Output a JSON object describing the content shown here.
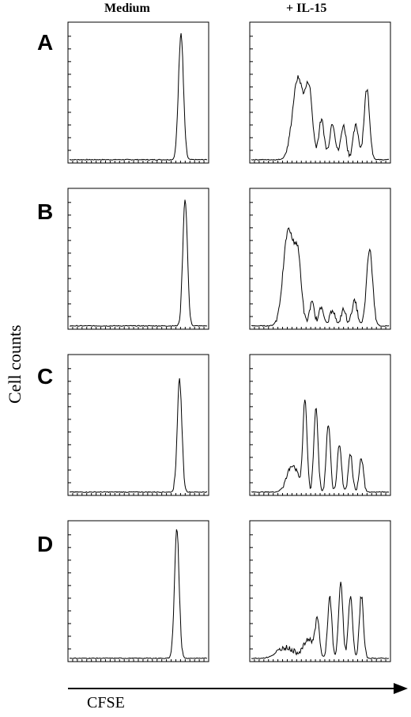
{
  "columns": [
    "Medium",
    "+ IL-15"
  ],
  "rows": [
    "A",
    "B",
    "C",
    "D"
  ],
  "ylabel": "Cell counts",
  "xlabel": "CFSE",
  "chart_data": {
    "type": "line",
    "note_units": "x = fraction of CFSE axis (low to high fluorescence); y = fraction of panel height",
    "xlabel": "CFSE",
    "ylabel": "Cell counts",
    "columns": [
      "Medium",
      "+ IL-15"
    ],
    "rows": [
      "A",
      "B",
      "C",
      "D"
    ],
    "panels": [
      {
        "row": "A",
        "column": "Medium",
        "peaks": [
          {
            "x": 0.81,
            "h": 0.93,
            "w": 0.018
          }
        ]
      },
      {
        "row": "A",
        "column": "+ IL-15",
        "peaks": [
          {
            "x": 0.34,
            "h": 0.6,
            "w": 0.04
          },
          {
            "x": 0.42,
            "h": 0.48,
            "w": 0.025
          },
          {
            "x": 0.51,
            "h": 0.29,
            "w": 0.02
          },
          {
            "x": 0.59,
            "h": 0.27,
            "w": 0.02
          },
          {
            "x": 0.67,
            "h": 0.25,
            "w": 0.02
          },
          {
            "x": 0.76,
            "h": 0.25,
            "w": 0.02
          },
          {
            "x": 0.84,
            "h": 0.52,
            "w": 0.02
          }
        ]
      },
      {
        "row": "B",
        "column": "Medium",
        "peaks": [
          {
            "x": 0.84,
            "h": 0.92,
            "w": 0.017
          }
        ]
      },
      {
        "row": "B",
        "column": "+ IL-15",
        "peaks": [
          {
            "x": 0.27,
            "h": 0.7,
            "w": 0.038
          },
          {
            "x": 0.34,
            "h": 0.44,
            "w": 0.025
          },
          {
            "x": 0.44,
            "h": 0.17,
            "w": 0.018
          },
          {
            "x": 0.51,
            "h": 0.14,
            "w": 0.018
          },
          {
            "x": 0.59,
            "h": 0.12,
            "w": 0.018
          },
          {
            "x": 0.67,
            "h": 0.12,
            "w": 0.018
          },
          {
            "x": 0.75,
            "h": 0.18,
            "w": 0.02
          },
          {
            "x": 0.86,
            "h": 0.56,
            "w": 0.022
          }
        ]
      },
      {
        "row": "C",
        "column": "Medium",
        "peaks": [
          {
            "x": 0.8,
            "h": 0.82,
            "w": 0.017
          }
        ]
      },
      {
        "row": "C",
        "column": "+ IL-15",
        "peaks": [
          {
            "x": 0.3,
            "h": 0.2,
            "w": 0.04
          },
          {
            "x": 0.39,
            "h": 0.66,
            "w": 0.015
          },
          {
            "x": 0.47,
            "h": 0.62,
            "w": 0.015
          },
          {
            "x": 0.56,
            "h": 0.5,
            "w": 0.015
          },
          {
            "x": 0.64,
            "h": 0.36,
            "w": 0.015
          },
          {
            "x": 0.72,
            "h": 0.28,
            "w": 0.015
          },
          {
            "x": 0.8,
            "h": 0.25,
            "w": 0.015
          }
        ]
      },
      {
        "row": "D",
        "column": "Medium",
        "peaks": [
          {
            "x": 0.78,
            "h": 0.94,
            "w": 0.017
          }
        ]
      },
      {
        "row": "D",
        "column": "+ IL-15",
        "peaks": [
          {
            "x": 0.25,
            "h": 0.08,
            "w": 0.06
          },
          {
            "x": 0.42,
            "h": 0.14,
            "w": 0.04
          },
          {
            "x": 0.48,
            "h": 0.25,
            "w": 0.015
          },
          {
            "x": 0.57,
            "h": 0.45,
            "w": 0.015
          },
          {
            "x": 0.65,
            "h": 0.56,
            "w": 0.015
          },
          {
            "x": 0.72,
            "h": 0.46,
            "w": 0.015
          },
          {
            "x": 0.8,
            "h": 0.46,
            "w": 0.015
          }
        ]
      }
    ]
  }
}
